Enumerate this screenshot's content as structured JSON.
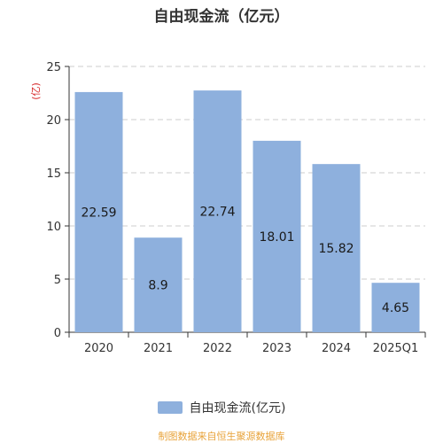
{
  "chart_data": {
    "type": "bar",
    "title": "自由现金流（亿元）",
    "ylabel": "(亿)",
    "categories": [
      "2020",
      "2021",
      "2022",
      "2023",
      "2024",
      "2025Q1"
    ],
    "series": [
      {
        "name": "自由现金流(亿元)",
        "values": [
          22.59,
          8.9,
          22.74,
          18.01,
          15.82,
          4.65
        ]
      }
    ],
    "data_labels": [
      "22.59",
      "8.9",
      "22.74",
      "18.01",
      "15.82",
      "4.65"
    ],
    "yticks": [
      0,
      5,
      10,
      15,
      20,
      25
    ],
    "ylim": [
      0,
      25
    ],
    "grid": true,
    "legend": "bottom",
    "bar_color": "#8eb0dd"
  },
  "legend_label": "自由现金流(亿元)",
  "source": "制图数据来自恒生聚源数据库"
}
